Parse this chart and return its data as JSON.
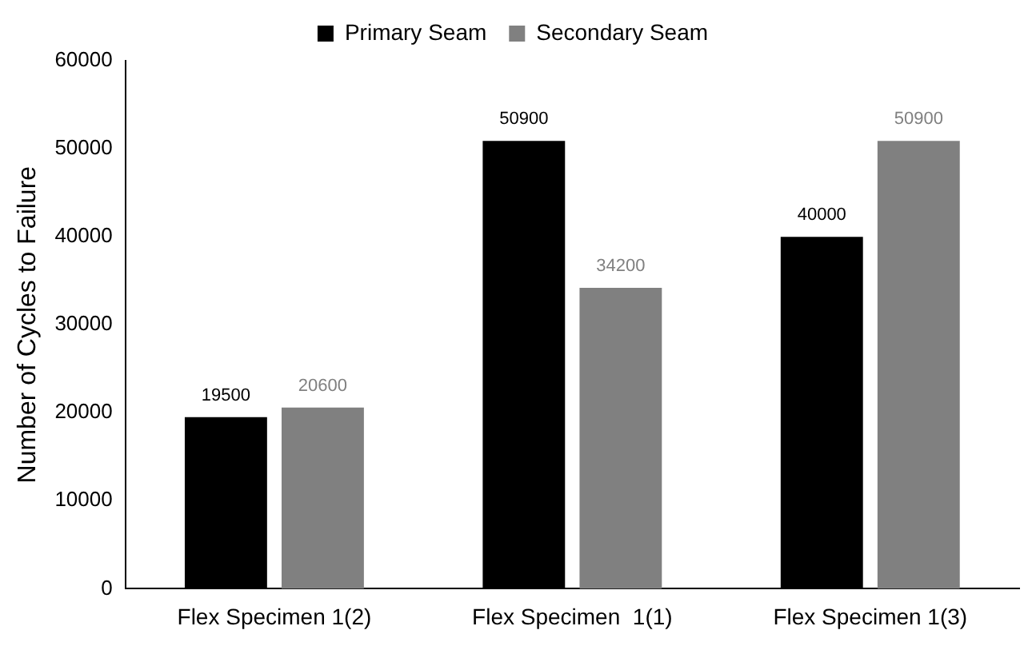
{
  "chart_data": {
    "type": "bar",
    "ylabel": "Number of Cycles to Failure",
    "categories": [
      "Flex Specimen 1(2)",
      "Flex Specimen  1(1)",
      "Flex Specimen 1(3)"
    ],
    "series": [
      {
        "name": "Primary Seam",
        "color": "#000000",
        "values": [
          19500,
          50900,
          40000
        ]
      },
      {
        "name": "Secondary Seam",
        "color": "#808080",
        "values": [
          20600,
          34200,
          50900
        ]
      }
    ],
    "ylim": [
      0,
      60000
    ],
    "yticks": [
      0,
      10000,
      20000,
      30000,
      40000,
      50000,
      60000
    ],
    "grid": false,
    "legend": "top",
    "data_labels": true
  }
}
